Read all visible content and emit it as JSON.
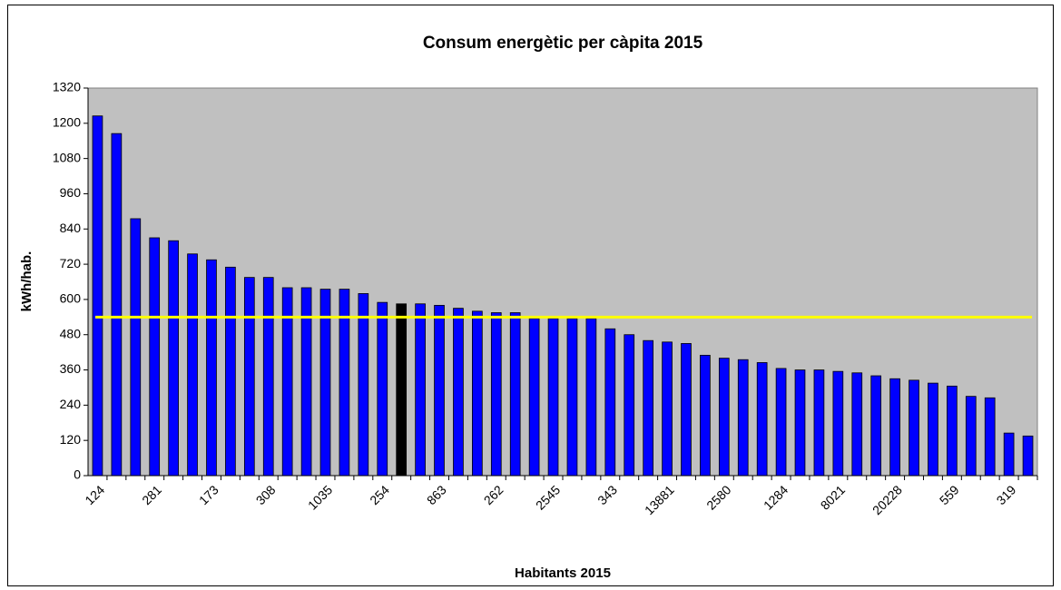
{
  "chart_data": {
    "type": "bar",
    "title": "Consum energètic per càpita 2015",
    "x_label": "Habitants 2015",
    "y_label": "kWh/hab.",
    "categories": [
      "124",
      null,
      null,
      "281",
      null,
      null,
      "173",
      null,
      null,
      "308",
      null,
      null,
      "1035",
      null,
      null,
      "254",
      null,
      null,
      "863",
      null,
      null,
      "262",
      null,
      null,
      "2545",
      null,
      null,
      "343",
      null,
      null,
      "13881",
      null,
      null,
      "2580",
      null,
      null,
      "1284",
      null,
      null,
      "8021",
      null,
      null,
      "20228",
      null,
      null,
      "559",
      null,
      null,
      "319",
      null
    ],
    "values": [
      1225,
      1165,
      875,
      810,
      800,
      755,
      735,
      710,
      675,
      675,
      640,
      640,
      635,
      635,
      620,
      590,
      585,
      585,
      580,
      570,
      560,
      555,
      555,
      535,
      535,
      535,
      535,
      500,
      480,
      460,
      455,
      450,
      410,
      400,
      395,
      385,
      365,
      360,
      360,
      355,
      350,
      340,
      330,
      325,
      315,
      305,
      270,
      265,
      145,
      135
    ],
    "colors": [
      "#0000ff",
      "#0000ff",
      "#0000ff",
      "#0000ff",
      "#0000ff",
      "#0000ff",
      "#0000ff",
      "#0000ff",
      "#0000ff",
      "#0000ff",
      "#0000ff",
      "#0000ff",
      "#0000ff",
      "#0000ff",
      "#0000ff",
      "#0000ff",
      "#000000",
      "#0000ff",
      "#0000ff",
      "#0000ff",
      "#0000ff",
      "#0000ff",
      "#0000ff",
      "#0000ff",
      "#0000ff",
      "#0000ff",
      "#0000ff",
      "#0000ff",
      "#0000ff",
      "#0000ff",
      "#0000ff",
      "#0000ff",
      "#0000ff",
      "#0000ff",
      "#0000ff",
      "#0000ff",
      "#0000ff",
      "#0000ff",
      "#0000ff",
      "#0000ff",
      "#0000ff",
      "#0000ff",
      "#0000ff",
      "#0000ff",
      "#0000ff",
      "#0000ff",
      "#0000ff",
      "#0000ff",
      "#0000ff",
      "#0000ff"
    ],
    "reference_value": 540,
    "reference_color": "#ffff00",
    "ylim": [
      0,
      1320
    ],
    "yticks": [
      0,
      120,
      240,
      360,
      480,
      600,
      720,
      840,
      960,
      1080,
      1200,
      1320
    ],
    "plot_background": "#c0c0c0"
  }
}
